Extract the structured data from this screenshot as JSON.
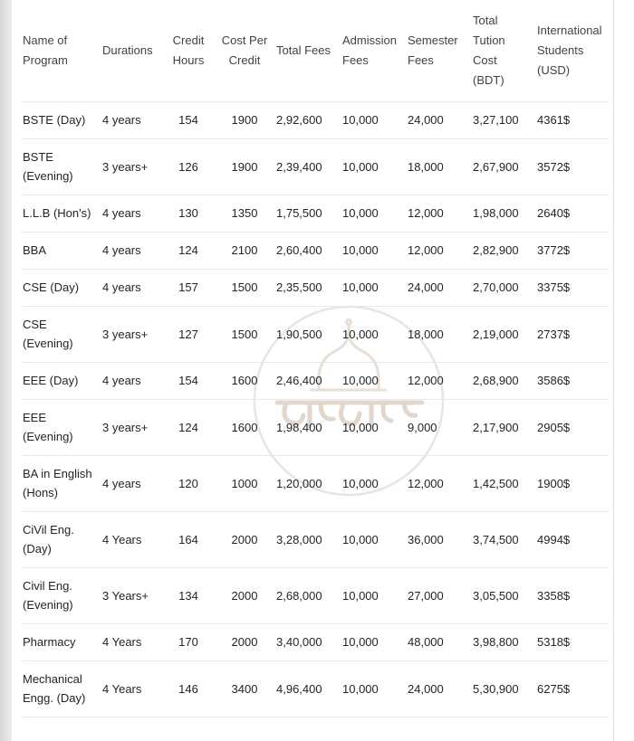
{
  "page": {
    "background_color": "#ffffff",
    "left_edge_color": "#d7d7d7",
    "divider_color": "#e8e8e8",
    "header_text_color": "#3f4246",
    "body_text_color": "#222426"
  },
  "watermark": {
    "description": "faint circular university seal with dome and Bengali script",
    "ring_color": "#d9cbbd",
    "script_color": "#c9ae99"
  },
  "table": {
    "columns": [
      {
        "id": "program",
        "label": "Name of Program"
      },
      {
        "id": "durations",
        "label": "Durations"
      },
      {
        "id": "credit_hours",
        "label": "Credit Hours"
      },
      {
        "id": "cost_per_credit",
        "label": "Cost Per Credit"
      },
      {
        "id": "total_fees",
        "label": "Total Fees"
      },
      {
        "id": "admission_fees",
        "label": "Admission Fees"
      },
      {
        "id": "semester_fees",
        "label": "Semester Fees"
      },
      {
        "id": "total_tuition_cost_bdt",
        "label": "Total Tution Cost (BDT)"
      },
      {
        "id": "international_students",
        "label": "International Students (USD)"
      }
    ],
    "rows": [
      [
        "BSTE (Day)",
        "4 years",
        "154",
        "1900",
        "2,92,600",
        "10,000",
        "24,000",
        "3,27,100",
        "4361$"
      ],
      [
        "BSTE (Evening)",
        "3 years+",
        "126",
        "1900",
        "2,39,400",
        "10,000",
        "18,000",
        "2,67,900",
        "3572$"
      ],
      [
        "L.L.B (Hon's)",
        "4 years",
        "130",
        "1350",
        "1,75,500",
        "10,000",
        "12,000",
        "1,98,000",
        "2640$"
      ],
      [
        "BBA",
        "4 years",
        "124",
        "2100",
        "2,60,400",
        "10,000",
        "12,000",
        "2,82,900",
        "3772$"
      ],
      [
        "CSE (Day)",
        "4 years",
        "157",
        "1500",
        "2,35,500",
        "10,000",
        "24,000",
        "2,70,000",
        "3375$"
      ],
      [
        "CSE (Evening)",
        "3 years+",
        "127",
        "1500",
        "1,90,500",
        "10,000",
        "18,000",
        "2,19,000",
        "2737$"
      ],
      [
        "EEE (Day)",
        "4 years",
        "154",
        "1600",
        "2,46,400",
        "10,000",
        "12,000",
        "2,68,900",
        "3586$"
      ],
      [
        "EEE (Evening)",
        "3 years+",
        "124",
        "1600",
        "1,98,400",
        "10,000",
        "9,000",
        "2,17,900",
        "2905$"
      ],
      [
        "BA in English (Hons)",
        "4 years",
        "120",
        "1000",
        "1,20,000",
        "10,000",
        "12,000",
        "1,42,500",
        "1900$"
      ],
      [
        "CiVil Eng. (Day)",
        "4 Years",
        "164",
        "2000",
        "3,28,000",
        "10,000",
        "36,000",
        "3,74,500",
        "4994$"
      ],
      [
        "Civil Eng. (Evening)",
        "3 Years+",
        "134",
        "2000",
        "2,68,000",
        "10,000",
        "27,000",
        "3,05,500",
        "3358$"
      ],
      [
        "Pharmacy",
        "4 Years",
        "170",
        "2000",
        "3,40,000",
        "10,000",
        "48,000",
        "3,98,800",
        "5318$"
      ],
      [
        "Mechanical Engg. (Day)",
        "4 Years",
        "146",
        "3400",
        "4,96,400",
        "10,000",
        "24,000",
        "5,30,900",
        "6275$"
      ]
    ]
  }
}
